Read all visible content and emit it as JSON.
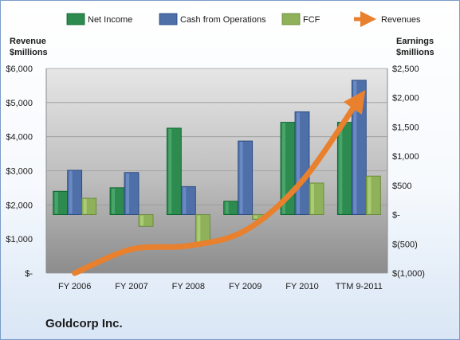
{
  "chart_data": {
    "type": "bar",
    "categories": [
      "FY 2006",
      "FY 2007",
      "FY 2008",
      "FY 2009",
      "FY 2010",
      "TTM 9-2011"
    ],
    "series": [
      {
        "name": "Net Income",
        "axis": "right",
        "color": "#2e8b4f",
        "values": [
          400,
          460,
          1480,
          230,
          1580,
          1580
        ]
      },
      {
        "name": "Cash from Operations",
        "axis": "right",
        "color": "#4e6fa8",
        "values": [
          760,
          720,
          480,
          1260,
          1760,
          2300
        ]
      },
      {
        "name": "FCF",
        "axis": "right",
        "color": "#8fb15a",
        "values": [
          280,
          -200,
          -500,
          -80,
          540,
          660
        ]
      },
      {
        "name": "Revenues",
        "axis": "left",
        "type": "line",
        "color": "#e8802e",
        "values": [
          0,
          700,
          800,
          1250,
          2700,
          5100
        ]
      }
    ],
    "left_axis": {
      "title_line1": "Revenue",
      "title_line2": "$millions",
      "ylim": [
        0,
        6000
      ],
      "ticks": [
        {
          "v": 0,
          "t": "$-"
        },
        {
          "v": 1000,
          "t": "$1,000"
        },
        {
          "v": 2000,
          "t": "$2,000"
        },
        {
          "v": 3000,
          "t": "$3,000"
        },
        {
          "v": 4000,
          "t": "$4,000"
        },
        {
          "v": 5000,
          "t": "$5,000"
        },
        {
          "v": 6000,
          "t": "$6,000"
        }
      ]
    },
    "right_axis": {
      "title_line1": "Earnings",
      "title_line2": "$millions",
      "ylim": [
        -1000,
        2500
      ],
      "ticks": [
        {
          "v": -1000,
          "t": "$(1,000)"
        },
        {
          "v": -500,
          "t": "$(500)"
        },
        {
          "v": 0,
          "t": "$-"
        },
        {
          "v": 500,
          "t": "$500"
        },
        {
          "v": 1000,
          "t": "$1,000"
        },
        {
          "v": 1500,
          "t": "$1,500"
        },
        {
          "v": 2000,
          "t": "$2,000"
        },
        {
          "v": 2500,
          "t": "$2,500"
        }
      ]
    },
    "legend_placement": "top"
  },
  "company_name": "Goldcorp Inc."
}
